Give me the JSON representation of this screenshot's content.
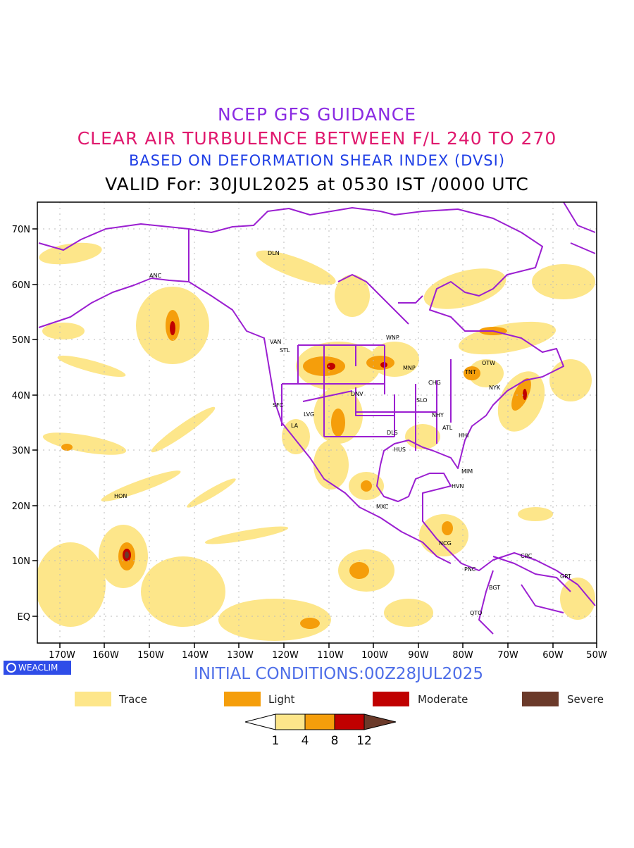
{
  "header": {
    "line1": "NCEP GFS GUIDANCE",
    "line2": "CLEAR AIR TURBULENCE BETWEEN F/L 240 TO 270",
    "line3": "BASED ON DEFORMATION SHEAR INDEX (DVSI)",
    "line4": "VALID For: 30JUL2025 at 0530 IST /0000 UTC"
  },
  "axes": {
    "lat_labels": [
      "70N",
      "60N",
      "50N",
      "40N",
      "30N",
      "20N",
      "10N",
      "EQ"
    ],
    "lon_labels": [
      "170W",
      "160W",
      "150W",
      "140W",
      "130W",
      "120W",
      "110W",
      "100W",
      "90W",
      "80W",
      "70W",
      "60W",
      "50W"
    ]
  },
  "stations": [
    {
      "id": "DEN_A",
      "label": "ANC"
    },
    {
      "id": "BRW",
      "label": "DLN"
    },
    {
      "id": "VAN",
      "label": "VAN"
    },
    {
      "id": "STL",
      "label": "STL"
    },
    {
      "id": "WNP",
      "label": "WNP"
    },
    {
      "id": "MNP",
      "label": "MNP"
    },
    {
      "id": "TNT",
      "label": "TNT"
    },
    {
      "id": "OTW",
      "label": "OTW"
    },
    {
      "id": "NYK",
      "label": "NYK"
    },
    {
      "id": "CHG",
      "label": "CHG"
    },
    {
      "id": "SFC",
      "label": "SFC"
    },
    {
      "id": "DNV",
      "label": "DNV"
    },
    {
      "id": "SLO",
      "label": "SLO"
    },
    {
      "id": "LVG",
      "label": "LVG"
    },
    {
      "id": "LA",
      "label": "LA"
    },
    {
      "id": "NHY",
      "label": "NHY"
    },
    {
      "id": "ATL",
      "label": "ATL"
    },
    {
      "id": "DLS",
      "label": "DLS"
    },
    {
      "id": "HHI",
      "label": "HHI"
    },
    {
      "id": "HUS",
      "label": "HUS"
    },
    {
      "id": "MIM",
      "label": "MIM"
    },
    {
      "id": "HVN",
      "label": "HVN"
    },
    {
      "id": "HON",
      "label": "HON"
    },
    {
      "id": "MXC",
      "label": "MXC"
    },
    {
      "id": "NCG",
      "label": "NCG"
    },
    {
      "id": "CRC",
      "label": "CRC"
    },
    {
      "id": "PNC",
      "label": "PNC"
    },
    {
      "id": "GRT",
      "label": "GRT"
    },
    {
      "id": "BGT",
      "label": "BGT"
    },
    {
      "id": "QTO",
      "label": "QTO"
    }
  ],
  "footer": {
    "brand": "WEACLIM",
    "initial": "INITIAL CONDITIONS:00Z28JUL2025"
  },
  "legend": {
    "items": [
      {
        "label": "Trace",
        "color": "#fde68a"
      },
      {
        "label": "Light",
        "color": "#f59e0b"
      },
      {
        "label": "Moderate",
        "color": "#c00000"
      },
      {
        "label": "Severe",
        "color": "#6b3a2a"
      }
    ],
    "scale": [
      "1",
      "4",
      "8",
      "12"
    ]
  },
  "colors": {
    "coast": "#9b1fd1",
    "trace": "#fde68a",
    "light": "#f59e0b",
    "moderate": "#c00000",
    "severe": "#6b3a2a"
  }
}
